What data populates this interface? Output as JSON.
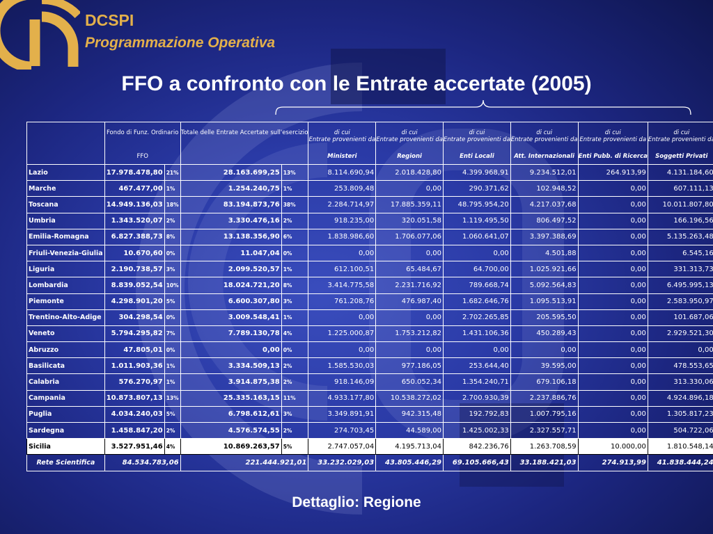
{
  "header": {
    "org": "DCSPI",
    "subtitle": "Programmazione Operativa"
  },
  "title": "FFO  a confronto con le Entrate accertate (2005)",
  "footer": "Dettaglio: Regione",
  "table": {
    "headers": [
      {
        "top": "Fondo di Funz. Ordinario",
        "bottom": "FFO"
      },
      {
        "top": "Totale delle Entrate Accertate sull'esercizio",
        "bottom": ""
      },
      {
        "top": "di cui",
        "mid": "Entrate provenienti da",
        "bottom": "Ministeri"
      },
      {
        "top": "di cui",
        "mid": "Entrate provenienti da",
        "bottom": "Regioni"
      },
      {
        "top": "di cui",
        "mid": "Entrate provenienti da",
        "bottom": "Enti Locali"
      },
      {
        "top": "di cui",
        "mid": "Entrate provenienti da",
        "bottom": "Att. Internazionali"
      },
      {
        "top": "di cui",
        "mid": "Entrate provenienti da",
        "bottom": "Enti Pubb. di Ricerca"
      },
      {
        "top": "di cui",
        "mid": "Entrate provenienti da",
        "bottom": "Soggetti Privati"
      }
    ],
    "rows": [
      {
        "region": "Lazio",
        "ffo": "17.978.478,80",
        "ffo_pct": "21%",
        "tot": "28.163.699,25",
        "tot_pct": "13%",
        "ministeri": "8.114.690,94",
        "regioni": "2.018.428,80",
        "enti_locali": "4.399.968,91",
        "att_int": "9.234.512,01",
        "enti_ric": "264.913,99",
        "privati": "4.131.184,60"
      },
      {
        "region": "Marche",
        "ffo": "467.477,00",
        "ffo_pct": "1%",
        "tot": "1.254.240,75",
        "tot_pct": "1%",
        "ministeri": "253.809,48",
        "regioni": "0,00",
        "enti_locali": "290.371,62",
        "att_int": "102.948,52",
        "enti_ric": "0,00",
        "privati": "607.111,13"
      },
      {
        "region": "Toscana",
        "ffo": "14.949.136,03",
        "ffo_pct": "18%",
        "tot": "83.194.873,76",
        "tot_pct": "38%",
        "ministeri": "2.284.714,97",
        "regioni": "17.885.359,11",
        "enti_locali": "48.795.954,20",
        "att_int": "4.217.037,68",
        "enti_ric": "0,00",
        "privati": "10.011.807,80"
      },
      {
        "region": "Umbria",
        "ffo": "1.343.520,07",
        "ffo_pct": "2%",
        "tot": "3.330.476,16",
        "tot_pct": "2%",
        "ministeri": "918.235,00",
        "regioni": "320.051,58",
        "enti_locali": "1.119.495,50",
        "att_int": "806.497,52",
        "enti_ric": "0,00",
        "privati": "166.196,56"
      },
      {
        "region": "Emilia-Romagna",
        "ffo": "6.827.388,73",
        "ffo_pct": "8%",
        "tot": "13.138.356,90",
        "tot_pct": "6%",
        "ministeri": "1.838.986,60",
        "regioni": "1.706.077,06",
        "enti_locali": "1.060.641,07",
        "att_int": "3.397.388,69",
        "enti_ric": "0,00",
        "privati": "5.135.263,48"
      },
      {
        "region": "Friuli-Venezia-Giulia",
        "ffo": "10.670,60",
        "ffo_pct": "0%",
        "tot": "11.047,04",
        "tot_pct": "0%",
        "ministeri": "0,00",
        "regioni": "0,00",
        "enti_locali": "0,00",
        "att_int": "4.501,88",
        "enti_ric": "0,00",
        "privati": "6.545,16"
      },
      {
        "region": "Liguria",
        "ffo": "2.190.738,57",
        "ffo_pct": "3%",
        "tot": "2.099.520,57",
        "tot_pct": "1%",
        "ministeri": "612.100,51",
        "regioni": "65.484,67",
        "enti_locali": "64.700,00",
        "att_int": "1.025.921,66",
        "enti_ric": "0,00",
        "privati": "331.313,73"
      },
      {
        "region": "Lombardia",
        "ffo": "8.839.052,54",
        "ffo_pct": "10%",
        "tot": "18.024.721,20",
        "tot_pct": "8%",
        "ministeri": "3.414.775,58",
        "regioni": "2.231.716,92",
        "enti_locali": "789.668,74",
        "att_int": "5.092.564,83",
        "enti_ric": "0,00",
        "privati": "6.495.995,13"
      },
      {
        "region": "Piemonte",
        "ffo": "4.298.901,20",
        "ffo_pct": "5%",
        "tot": "6.600.307,80",
        "tot_pct": "3%",
        "ministeri": "761.208,76",
        "regioni": "476.987,40",
        "enti_locali": "1.682.646,76",
        "att_int": "1.095.513,91",
        "enti_ric": "0,00",
        "privati": "2.583.950,97"
      },
      {
        "region": "Trentino-Alto-Adige",
        "ffo": "304.298,54",
        "ffo_pct": "0%",
        "tot": "3.009.548,41",
        "tot_pct": "1%",
        "ministeri": "0,00",
        "regioni": "0,00",
        "enti_locali": "2.702.265,85",
        "att_int": "205.595,50",
        "enti_ric": "0,00",
        "privati": "101.687,06"
      },
      {
        "region": "Veneto",
        "ffo": "5.794.295,82",
        "ffo_pct": "7%",
        "tot": "7.789.130,78",
        "tot_pct": "4%",
        "ministeri": "1.225.000,87",
        "regioni": "1.753.212,82",
        "enti_locali": "1.431.106,36",
        "att_int": "450.289,43",
        "enti_ric": "0,00",
        "privati": "2.929.521,30"
      },
      {
        "region": "Abruzzo",
        "ffo": "47.805,01",
        "ffo_pct": "0%",
        "tot": "0,00",
        "tot_pct": "0%",
        "ministeri": "0,00",
        "regioni": "0,00",
        "enti_locali": "0,00",
        "att_int": "0,00",
        "enti_ric": "0,00",
        "privati": "0,00"
      },
      {
        "region": "Basilicata",
        "ffo": "1.011.903,36",
        "ffo_pct": "1%",
        "tot": "3.334.509,13",
        "tot_pct": "2%",
        "ministeri": "1.585.530,03",
        "regioni": "977.186,05",
        "enti_locali": "253.644,40",
        "att_int": "39.595,00",
        "enti_ric": "0,00",
        "privati": "478.553,65"
      },
      {
        "region": "Calabria",
        "ffo": "576.270,97",
        "ffo_pct": "1%",
        "tot": "3.914.875,38",
        "tot_pct": "2%",
        "ministeri": "918.146,09",
        "regioni": "650.052,34",
        "enti_locali": "1.354.240,71",
        "att_int": "679.106,18",
        "enti_ric": "0,00",
        "privati": "313.330,06"
      },
      {
        "region": "Campania",
        "ffo": "10.873.807,13",
        "ffo_pct": "13%",
        "tot": "25.335.163,15",
        "tot_pct": "11%",
        "ministeri": "4.933.177,80",
        "regioni": "10.538.272,02",
        "enti_locali": "2.700.930,39",
        "att_int": "2.237.886,76",
        "enti_ric": "0,00",
        "privati": "4.924.896,18"
      },
      {
        "region": "Puglia",
        "ffo": "4.034.240,03",
        "ffo_pct": "5%",
        "tot": "6.798.612,61",
        "tot_pct": "3%",
        "ministeri": "3.349.891,91",
        "regioni": "942.315,48",
        "enti_locali": "192.792,83",
        "att_int": "1.007.795,16",
        "enti_ric": "0,00",
        "privati": "1.305.817,23"
      },
      {
        "region": "Sardegna",
        "ffo": "1.458.847,20",
        "ffo_pct": "2%",
        "tot": "4.576.574,55",
        "tot_pct": "2%",
        "ministeri": "274.703,45",
        "regioni": "44.589,00",
        "enti_locali": "1.425.002,33",
        "att_int": "2.327.557,71",
        "enti_ric": "0,00",
        "privati": "504.722,06"
      },
      {
        "region": "Sicilia",
        "ffo": "3.527.951,46",
        "ffo_pct": "4%",
        "tot": "10.869.263,57",
        "tot_pct": "5%",
        "ministeri": "2.747.057,04",
        "regioni": "4.195.713,04",
        "enti_locali": "842.236,76",
        "att_int": "1.263.708,59",
        "enti_ric": "10.000,00",
        "privati": "1.810.548,14"
      }
    ],
    "total": {
      "region": "Rete Scientifica",
      "ffo": "84.534.783,06",
      "tot": "221.444.921,01",
      "ministeri": "33.232.029,03",
      "regioni": "43.805.446,29",
      "enti_locali": "69.105.666,43",
      "att_int": "33.188.421,03",
      "enti_ric": "274.913,99",
      "privati": "41.838.444,24"
    }
  }
}
